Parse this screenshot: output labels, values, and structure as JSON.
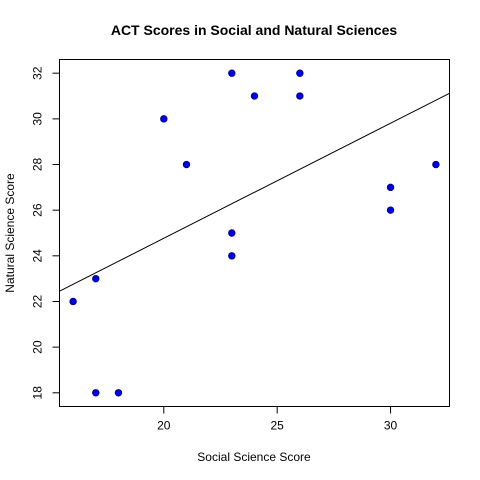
{
  "chart_data": {
    "type": "scatter",
    "title": "ACT Scores in Social and Natural Sciences",
    "xlabel": "Social Science Score",
    "ylabel": "Natural Science Score",
    "xlim": [
      15.4,
      32.6
    ],
    "ylim": [
      17.4,
      32.6
    ],
    "x_ticks": [
      20,
      25,
      30
    ],
    "y_ticks": [
      18,
      20,
      22,
      24,
      26,
      28,
      30,
      32
    ],
    "points": [
      {
        "x": 16,
        "y": 22
      },
      {
        "x": 17,
        "y": 23
      },
      {
        "x": 17,
        "y": 18
      },
      {
        "x": 18,
        "y": 18
      },
      {
        "x": 20,
        "y": 30
      },
      {
        "x": 21,
        "y": 28
      },
      {
        "x": 23,
        "y": 32
      },
      {
        "x": 23,
        "y": 25
      },
      {
        "x": 23,
        "y": 24
      },
      {
        "x": 24,
        "y": 31
      },
      {
        "x": 26,
        "y": 32
      },
      {
        "x": 26,
        "y": 31
      },
      {
        "x": 30,
        "y": 27
      },
      {
        "x": 30,
        "y": 26
      },
      {
        "x": 32,
        "y": 28
      }
    ],
    "trendline": {
      "x": [
        15.4,
        32.6
      ],
      "y": [
        22.45,
        31.12
      ]
    },
    "grid": false,
    "legend": "none"
  }
}
